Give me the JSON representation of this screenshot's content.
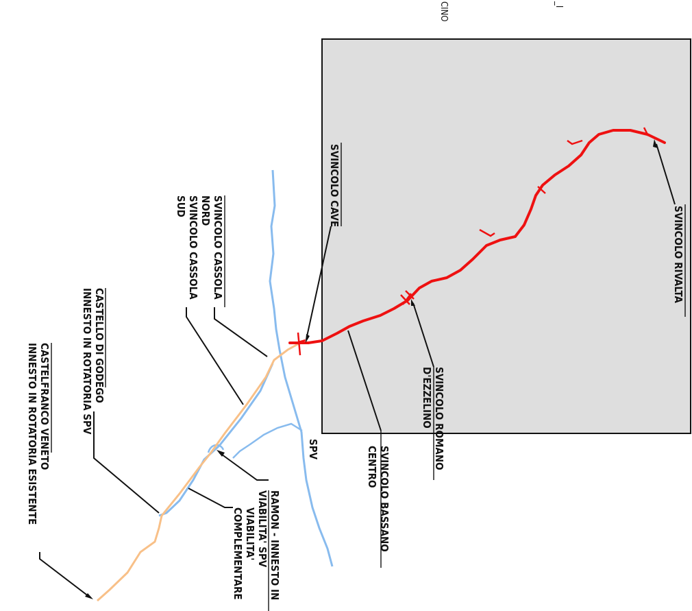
{
  "top_fragments": {
    "left_fragment": "_I",
    "right_fragment": "CINO"
  },
  "colors": {
    "study_area": "#dedede",
    "project_route": "#ee1111",
    "spv_route": "#88bbee",
    "existing_route": "#f8c088",
    "text": "#111111"
  },
  "labels": {
    "spv": "SPV",
    "svincolo_rivalta": "SVINCOLO RIVALTA",
    "svincolo_cave": "SVINCOLO CAVE",
    "svincolo_romano_1": "SVINCOLO ROMANO",
    "svincolo_romano_2": "D'EZZELINO",
    "svincolo_bassano_1": "SVINCOLO BASSANO",
    "svincolo_bassano_2": "CENTRO",
    "cassola_nord_1": "SVINCOLO CASSOLA",
    "cassola_nord_2": "NORD",
    "cassola_sud_1": "SVINCOLO CASSOLA",
    "cassola_sud_2": "SUD",
    "castello_1": "CASTELLO DI GODEGO",
    "castello_2": "INNESTO IN ROTATORIA SPV",
    "castelfranco_1": "CASTELFRANCO VENETO",
    "castelfranco_2": "INNESTO IN ROTATORIA ESISTENTE",
    "ramon_1": "RAMON - INNESTO IN",
    "ramon_2": "VIABILITA' SPV",
    "ramon_3": "VIABILITA'",
    "ramon_4": "COMPLEMENTARE"
  }
}
